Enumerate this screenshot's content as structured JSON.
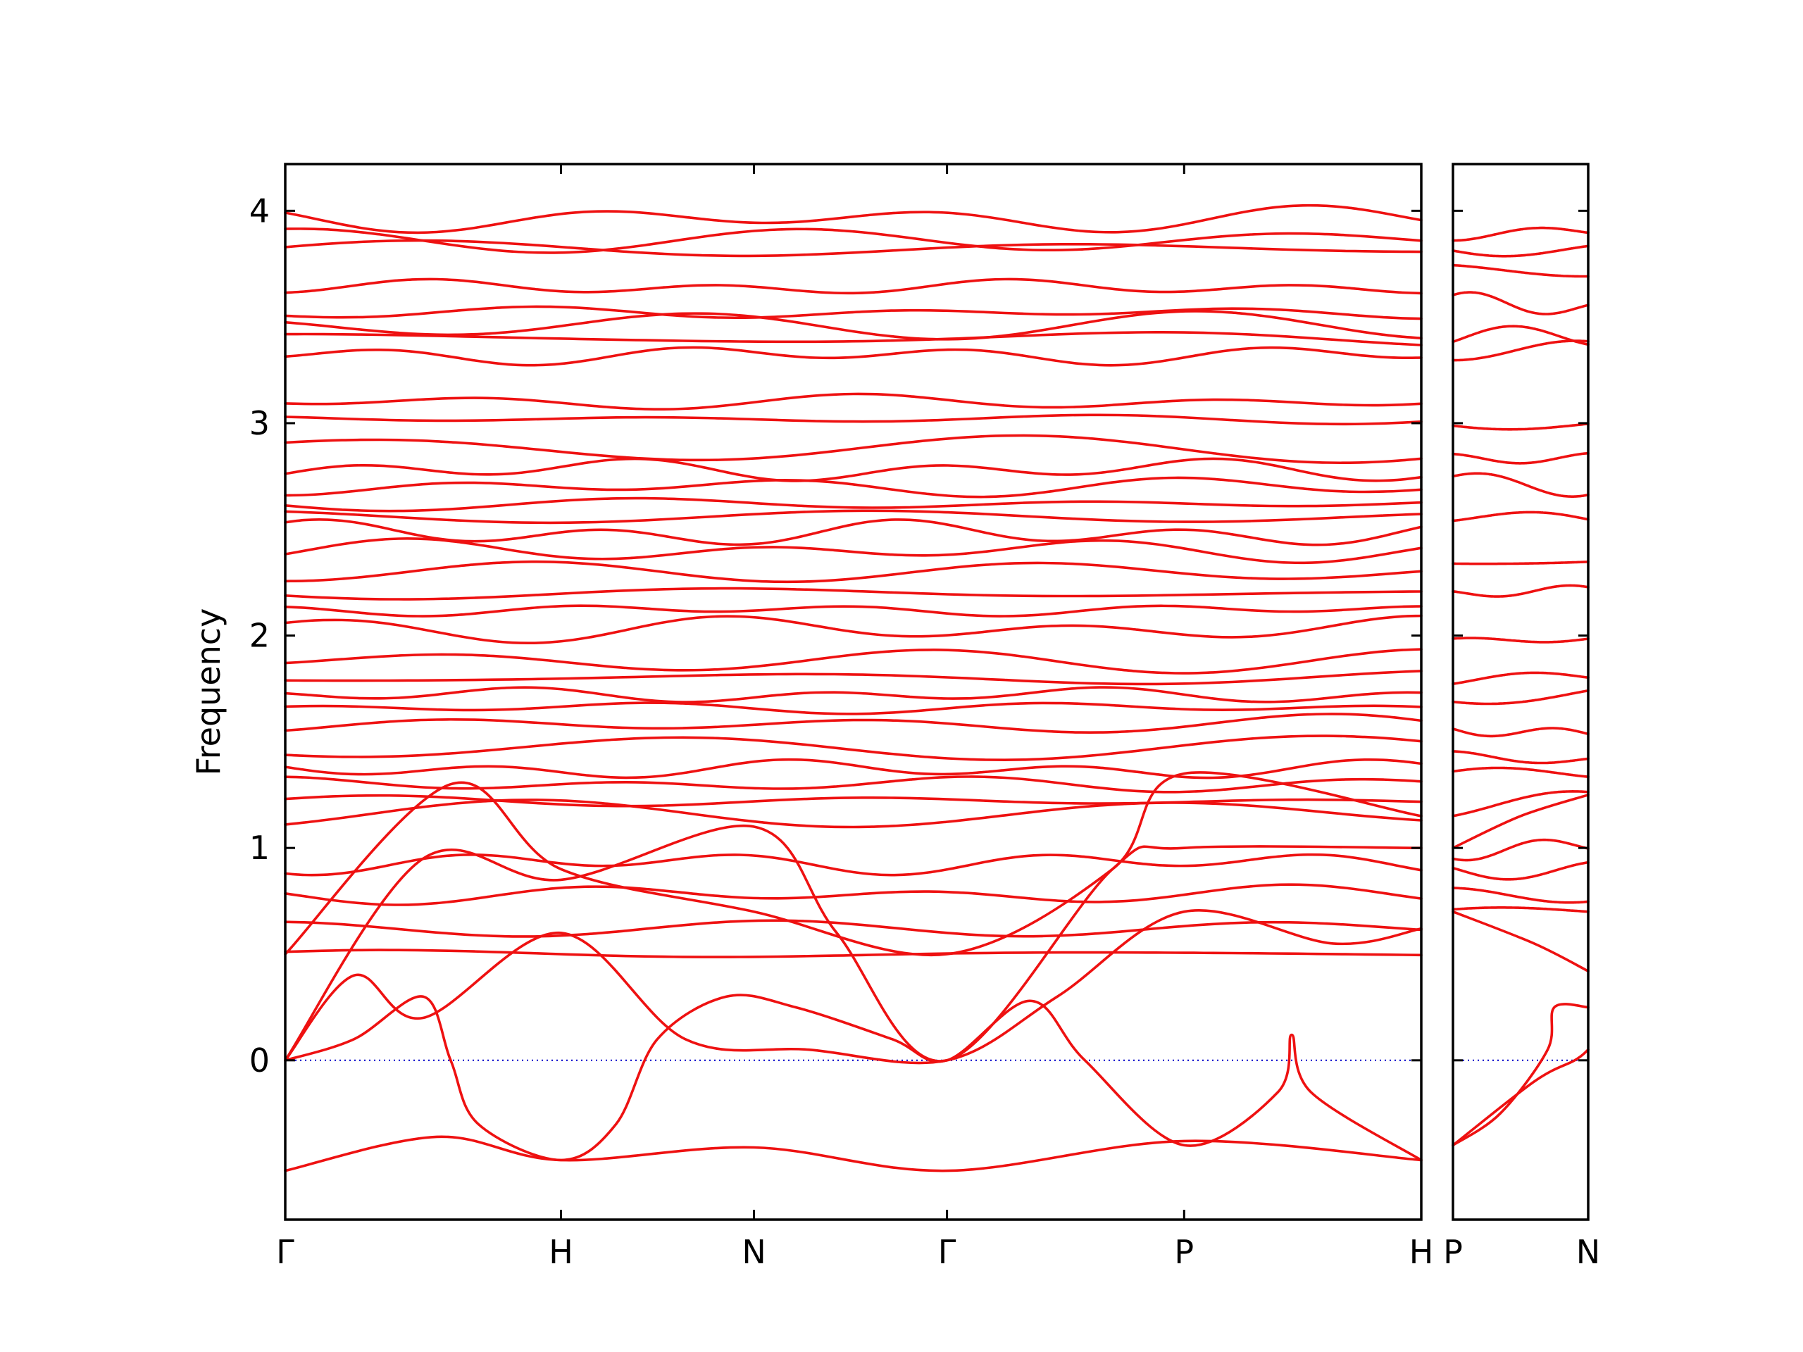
{
  "chart_data": {
    "type": "line",
    "title": "",
    "ylabel": "Frequency",
    "xlabel": "",
    "ylim": [
      -0.75,
      4.22
    ],
    "yticks": [
      0,
      1,
      2,
      3,
      4
    ],
    "grid": false,
    "colors": {
      "bands": "#ee1111",
      "zero_line": "#0000cc",
      "frame": "#000000"
    },
    "zero_line": {
      "y": 0,
      "style": "dotted"
    },
    "panels": [
      {
        "name": "main",
        "labels": [
          "Γ",
          "H",
          "N",
          "Γ",
          "P",
          "H"
        ],
        "kpoints": [
          0,
          1,
          1.7,
          2.4,
          3.26,
          4.12
        ]
      },
      {
        "name": "secondary",
        "labels": [
          "P",
          "N"
        ],
        "kpoints": [
          0,
          1
        ]
      }
    ],
    "flat_bands": {
      "main": [
        0.5,
        0.62,
        0.78,
        0.93,
        1.16,
        1.22,
        1.3,
        1.37,
        1.47,
        1.58,
        1.66,
        1.72,
        1.8,
        1.88,
        2.03,
        2.12,
        2.2,
        2.3,
        2.4,
        2.48,
        2.56,
        2.62,
        2.7,
        2.78,
        2.88,
        3.02,
        3.1,
        3.32,
        3.4,
        3.46,
        3.52,
        3.64,
        3.82,
        3.86,
        3.96
      ],
      "secondary": [
        0.7,
        0.78,
        0.9,
        1.0,
        1.2,
        1.35,
        1.42,
        1.55,
        1.72,
        1.8,
        1.98,
        2.2,
        2.35,
        2.55,
        2.72,
        2.84,
        3.0,
        3.34,
        3.4,
        3.55,
        3.72,
        3.82,
        3.9
      ]
    },
    "dispersive_bands": {
      "main": [
        [
          [
            0,
            0.0
          ],
          [
            0.25,
            0.1
          ],
          [
            0.5,
            0.3
          ],
          [
            0.6,
            0.0
          ],
          [
            0.7,
            -0.3
          ],
          [
            1.0,
            -0.47
          ],
          [
            1.2,
            -0.3
          ],
          [
            1.35,
            0.1
          ],
          [
            1.6,
            0.3
          ],
          [
            1.85,
            0.25
          ],
          [
            2.2,
            0.1
          ],
          [
            2.4,
            0.0
          ],
          [
            2.7,
            0.28
          ],
          [
            2.9,
            0.0
          ],
          [
            3.26,
            -0.4
          ],
          [
            3.6,
            -0.15
          ],
          [
            3.65,
            0.12
          ],
          [
            3.72,
            -0.15
          ],
          [
            4.12,
            -0.47
          ]
        ],
        [
          [
            0,
            0.0
          ],
          [
            0.25,
            0.4
          ],
          [
            0.5,
            0.2
          ],
          [
            1.0,
            0.6
          ],
          [
            1.45,
            0.1
          ],
          [
            1.9,
            0.05
          ],
          [
            2.4,
            0.0
          ],
          [
            2.8,
            0.3
          ],
          [
            3.26,
            0.7
          ],
          [
            3.8,
            0.55
          ],
          [
            4.12,
            0.62
          ]
        ],
        [
          [
            0,
            0.0
          ],
          [
            0.5,
            0.95
          ],
          [
            1.0,
            0.85
          ],
          [
            1.7,
            1.1
          ],
          [
            2.0,
            0.6
          ],
          [
            2.4,
            0.0
          ],
          [
            3.0,
            0.9
          ],
          [
            3.26,
            1.0
          ],
          [
            4.12,
            1.0
          ]
        ],
        [
          [
            0,
            0.5
          ],
          [
            0.6,
            1.3
          ],
          [
            1.0,
            0.9
          ],
          [
            1.7,
            0.7
          ],
          [
            2.4,
            0.5
          ],
          [
            3.0,
            0.9
          ],
          [
            3.26,
            1.35
          ],
          [
            4.12,
            1.15
          ]
        ],
        [
          [
            0,
            -0.52
          ],
          [
            0.55,
            -0.36
          ],
          [
            1.0,
            -0.47
          ],
          [
            1.7,
            -0.41
          ],
          [
            2.4,
            -0.52
          ],
          [
            3.26,
            -0.38
          ],
          [
            4.12,
            -0.47
          ]
        ]
      ],
      "secondary": [
        [
          [
            0,
            -0.4
          ],
          [
            0.35,
            -0.25
          ],
          [
            0.7,
            0.05
          ],
          [
            0.75,
            0.25
          ],
          [
            1.0,
            0.25
          ]
        ],
        [
          [
            0,
            -0.4
          ],
          [
            0.6,
            -0.1
          ],
          [
            0.9,
            0.0
          ],
          [
            1.0,
            0.05
          ]
        ],
        [
          [
            0,
            0.7
          ],
          [
            0.6,
            0.55
          ],
          [
            1.0,
            0.42
          ]
        ],
        [
          [
            0,
            1.0
          ],
          [
            0.5,
            1.15
          ],
          [
            1.0,
            1.25
          ]
        ]
      ]
    }
  }
}
